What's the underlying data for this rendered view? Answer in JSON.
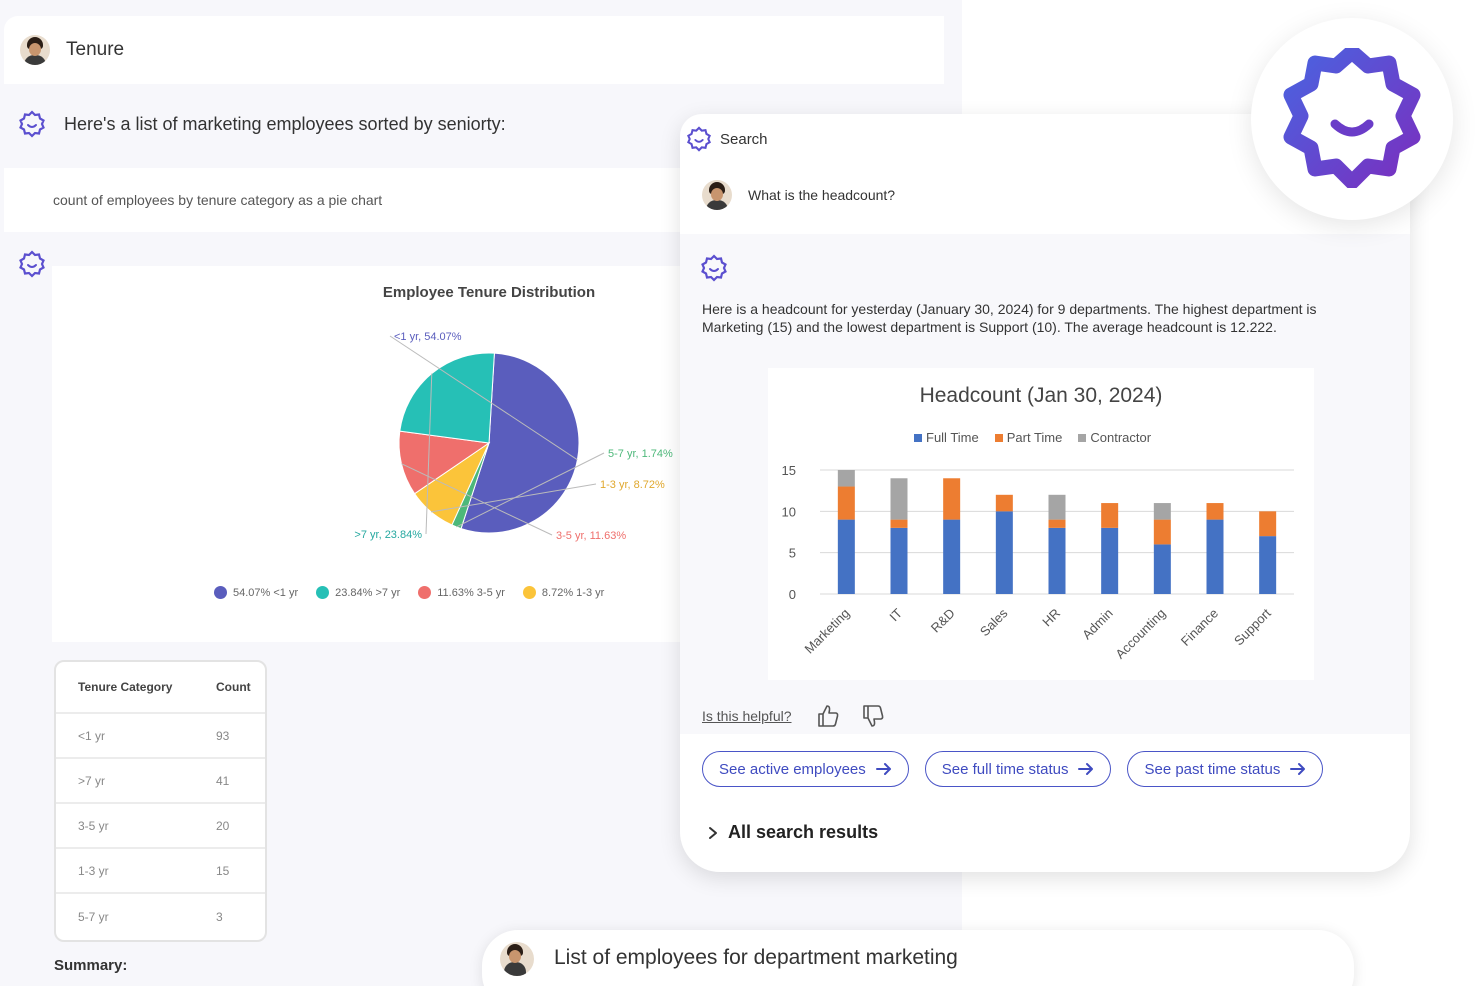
{
  "back_panel": {
    "user_message": "Tenure",
    "bot_intro": "Here's a list of marketing employees sorted by seniorty:",
    "user_query": "count of employees by tenure category as a pie chart",
    "pie_chart": {
      "title": "Employee Tenure Distribution",
      "slice_labels": [
        "<1 yr, 54.07%",
        "5-7 yr, 1.74%",
        "1-3 yr, 8.72%",
        "3-5 yr, 11.63%",
        ">7 yr, 23.84%"
      ],
      "legend": [
        "54.07% <1 yr",
        "23.84% >7 yr",
        "11.63% 3-5 yr",
        "8.72% 1-3 yr"
      ]
    },
    "table": {
      "headers": [
        "Tenure Category",
        "Count"
      ],
      "rows": [
        {
          "category": "<1 yr",
          "count": "93"
        },
        {
          "category": ">7 yr",
          "count": "41"
        },
        {
          "category": "3-5 yr",
          "count": "20"
        },
        {
          "category": "1-3 yr",
          "count": "15"
        },
        {
          "category": "5-7 yr",
          "count": "3"
        }
      ]
    },
    "summary_label": "Summary:"
  },
  "front_card": {
    "search_label": "Search",
    "user_question": "What is the headcount?",
    "response_text": "Here is a headcount for yesterday (January 30, 2024) for 9 departments. The highest department is Marketing (15) and the lowest department is Support (10). The average headcount is 12.222.",
    "helpful_label": "Is this helpful?",
    "actions": [
      {
        "label": "See active employees"
      },
      {
        "label": "See full time status"
      },
      {
        "label": "See past time status"
      }
    ],
    "all_results_label": "All search results"
  },
  "bottom_bar": {
    "message": "List of employees for department marketing"
  },
  "colors": {
    "full_time": "#4472c4",
    "part_time": "#ed7d31",
    "contractor": "#a5a5a5",
    "brand_purple": "#5b4fcf",
    "pie_lt1": "#5a5dbd",
    "pie_gt7": "#26c0b6",
    "pie_3_5": "#ef6f6c",
    "pie_1_3": "#fbc43a",
    "pie_5_7": "#4db87a"
  },
  "chart_data": [
    {
      "type": "pie",
      "title": "Employee Tenure Distribution",
      "categories": [
        "<1 yr",
        ">7 yr",
        "3-5 yr",
        "1-3 yr",
        "5-7 yr"
      ],
      "values": [
        54.07,
        23.84,
        11.63,
        8.72,
        1.74
      ]
    },
    {
      "type": "bar",
      "title": "Headcount (Jan 30, 2024)",
      "categories": [
        "Marketing",
        "IT",
        "R&D",
        "Sales",
        "HR",
        "Admin",
        "Accounting",
        "Finance",
        "Support"
      ],
      "series": [
        {
          "name": "Full Time",
          "values": [
            9,
            8,
            9,
            10,
            8,
            8,
            6,
            9,
            7
          ]
        },
        {
          "name": "Part Time",
          "values": [
            4,
            1,
            5,
            2,
            1,
            3,
            3,
            2,
            3
          ]
        },
        {
          "name": "Contractor",
          "values": [
            2,
            5,
            0,
            0,
            3,
            0,
            2,
            0,
            0
          ]
        }
      ],
      "ylim": [
        0,
        15
      ],
      "yticks": [
        "0",
        "5",
        "10",
        "15"
      ],
      "grid": true,
      "legend": "top"
    }
  ]
}
